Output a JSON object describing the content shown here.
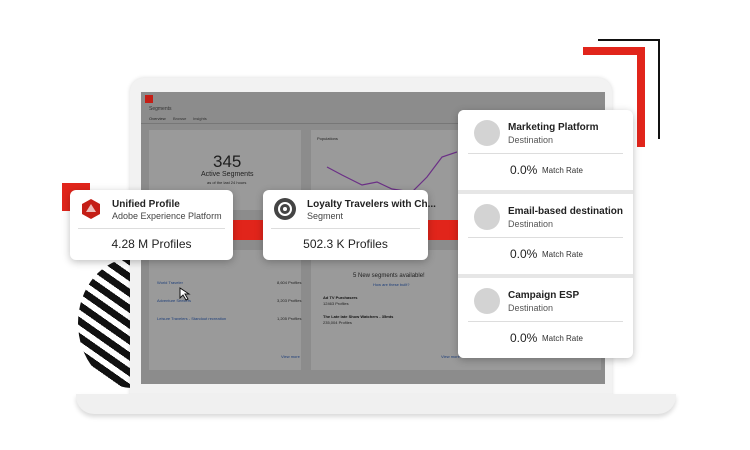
{
  "screen": {
    "title": "Segments",
    "tabs": [
      "Overview",
      "Browse",
      "Insights"
    ],
    "summary": {
      "count": "345",
      "label": "Active Segments",
      "note": "as of the last 24 hours"
    },
    "populations": {
      "title": "Populations"
    },
    "segment_list": {
      "items": [
        {
          "name": "World Traveler",
          "profiles": "8,604 Profiles"
        },
        {
          "name": "Adventure Seekers",
          "profiles": "3,203 Profiles"
        },
        {
          "name": "Leisure Travelers - Standout recreation",
          "profiles": "1,205 Profiles"
        }
      ],
      "more": "View more"
    },
    "new_segments": {
      "title": "5 New segments available!",
      "link": "How are these built?",
      "items": [
        {
          "name": "Ad TV Purchasers",
          "profiles": "12463 Profiles"
        },
        {
          "name": "The Late late Show Watchers - 35mts",
          "profiles": "235,004 Profiles"
        }
      ],
      "more": "View more"
    }
  },
  "cards": [
    {
      "title": "Unified Profile",
      "subtitle": "Adobe Experience Platform",
      "value": "4.28 M Profiles"
    },
    {
      "title": "Loyalty Travelers with Ch...",
      "subtitle": "Segment",
      "value": "502.3 K Profiles"
    }
  ],
  "destinations": [
    {
      "name": "Marketing Platform",
      "kind": "Destination",
      "rate": "0.0%",
      "rate_label": "Match Rate"
    },
    {
      "name": "Email-based destination",
      "kind": "Destination",
      "rate": "0.0%",
      "rate_label": "Match Rate"
    },
    {
      "name": "Campaign ESP",
      "kind": "Destination",
      "rate": "0.0%",
      "rate_label": "Match Rate"
    }
  ]
}
